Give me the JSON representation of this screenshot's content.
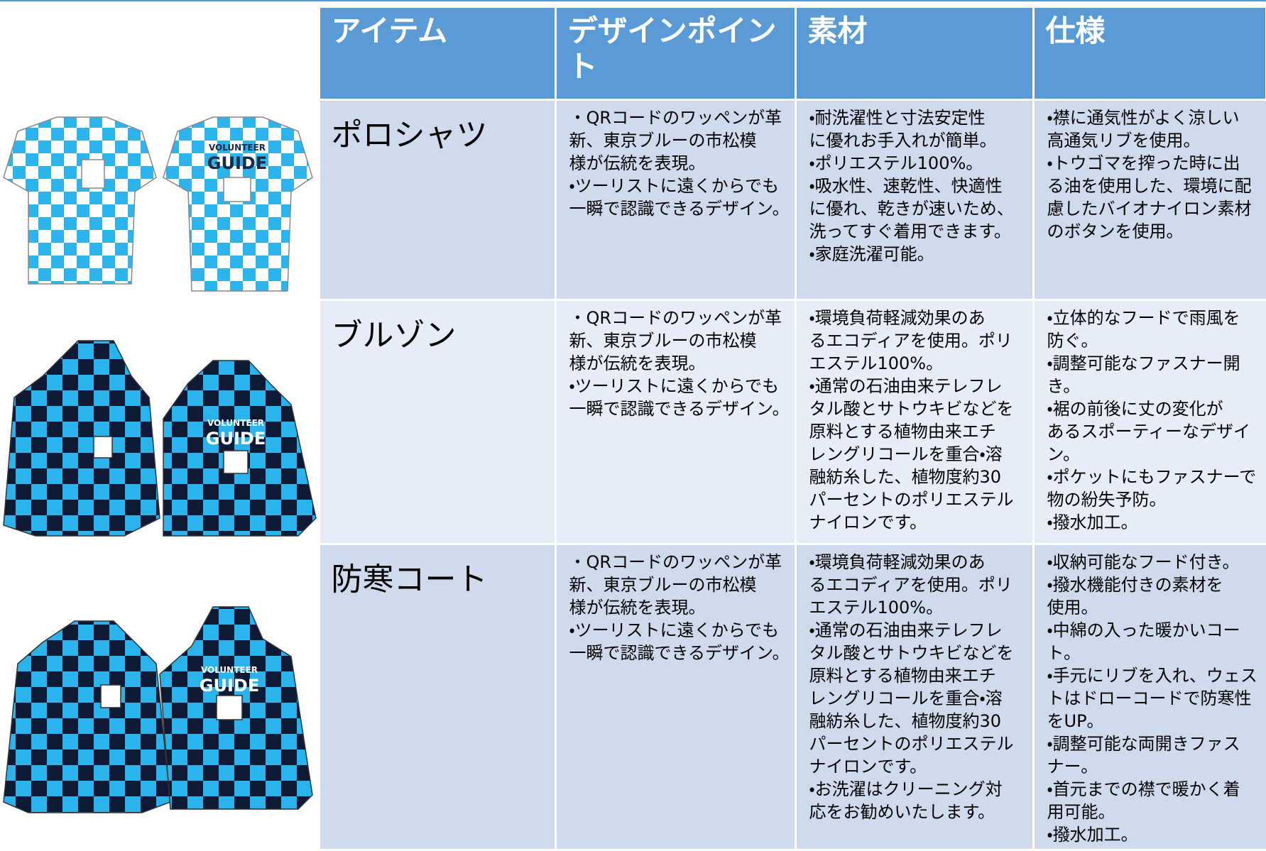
{
  "header": [
    "アイテム",
    "デザインポイント",
    "素材",
    "仕様"
  ],
  "rows": [
    {
      "item": "ポロシャツ",
      "badge": [
        "VOLUNTEER",
        "GUIDE"
      ],
      "design": [
        "・QRコードのワッペンが革",
        "新、東京ブルーの市松模",
        "様が伝統を表現。",
        "・ツーリストに遠くからでも",
        "一瞬で認識できるデザイン。"
      ],
      "material": [
        "・耐洗濯性と寸法安定性",
        "に優れお手入れが簡単。",
        "・ポリエステル100%。",
        "・吸水性、速乾性、快適性",
        "に優れ、乾きが速いため、",
        "洗ってすぐ着用できます。",
        "・家庭洗濯可能。"
      ],
      "spec": [
        "・襟に通気性がよく涼しい",
        "高通気リブを使用。",
        "・トウゴマを搾った時に出",
        "る油を使用した、環境に配",
        "慮したバイオナイロン素材",
        "のボタンを使用。"
      ]
    },
    {
      "item": "ブルゾン",
      "badge": [
        "VOLUNTEER",
        "GUIDE"
      ],
      "design": [
        "・QRコードのワッペンが革",
        "新、東京ブルーの市松模",
        "様が伝統を表現。",
        "・ツーリストに遠くからでも",
        "一瞬で認識できるデザイン。"
      ],
      "material": [
        "・環境負荷軽減効果のあ",
        "るエコディアを使用。ポリ",
        "エステル100%。",
        "・通常の石油由来テレフレ",
        "タル酸とサトウキビなどを",
        "原料とする植物由来エチ",
        "レングリコールを重合・溶",
        "融紡糸した、植物度約30",
        "パーセントのポリエステル",
        "ナイロンです。"
      ],
      "spec": [
        "・立体的なフードで雨風を",
        "防ぐ。",
        "・調整可能なファスナー開",
        "き。",
        "・裾の前後に丈の変化が",
        "あるスポーティーなデザイ",
        "ン。",
        "・ポケットにもファスナーで",
        "物の紛失予防。",
        "・撥水加工。"
      ]
    },
    {
      "item": "防寒コート",
      "badge": [
        "VOLUNTEER",
        "GUIDE"
      ],
      "design": [
        "・QRコードのワッペンが革",
        "新、東京ブルーの市松模",
        "様が伝統を表現。",
        "・ツーリストに遠くからでも",
        "一瞬で認識できるデザイン。"
      ],
      "material": [
        "・環境負荷軽減効果のあ",
        "るエコディアを使用。ポリ",
        "エステル100%。",
        "・通常の石油由来テレフレ",
        "タル酸とサトウキビなどを",
        "原料とする植物由来エチ",
        "レングリコールを重合・溶",
        "融紡糸した、植物度約30",
        "パーセントのポリエステル",
        "ナイロンです。",
        "・お洗濯はクリーニング対",
        "応をお勧めいたします。"
      ],
      "spec": [
        "・収納可能なフード付き。",
        "・撥水機能付きの素材を",
        "使用。",
        "・中綿の入った暖かいコー",
        "ト。",
        "・手元にリブを入れ、ウェス",
        "トはドローコードで防寒性",
        "をUP。",
        "・調整可能な両開きファス",
        "ナー。",
        "・首元までの襟で暖かく着",
        "用可能。",
        "・撥水加工。"
      ]
    }
  ]
}
